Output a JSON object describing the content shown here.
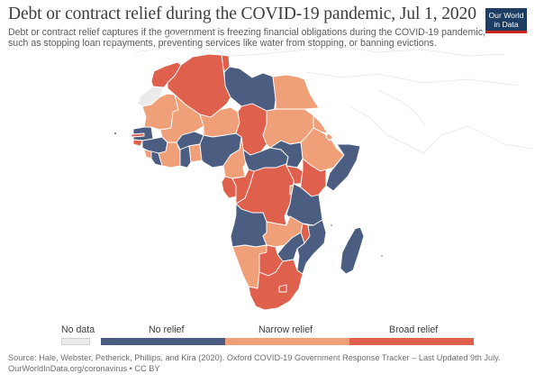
{
  "header": {
    "title": "Debt or contract relief during the COVID-19 pandemic, Jul 1, 2020",
    "subtitle_line1": "Debt or contract relief captures if the government is freezing financial obligations during the COVID-19 pandemic,",
    "subtitle_line2": "such as stopping loan repayments, preventing services like water from stopping, or banning evictions."
  },
  "logo": {
    "line1": "Our World",
    "line2": "in Data"
  },
  "legend": {
    "items": [
      {
        "label": "No data",
        "color": "#ebebeb"
      },
      {
        "label": "No relief",
        "color": "#4b5e82"
      },
      {
        "label": "Narrow relief",
        "color": "#f0a078"
      },
      {
        "label": "Broad relief",
        "color": "#e0604e"
      }
    ]
  },
  "map_colors": {
    "ocean_lines": "#e8e8e8",
    "border": "#ffffff",
    "no_data": "#ebebeb",
    "no_relief": "#4b5e82",
    "narrow_relief": "#f0a078",
    "broad_relief": "#e0604e"
  },
  "footer": {
    "source_line1": "Source: Hale, Webster, Petherick, Phillips, and Kira (2020). Oxford COVID-19 Government Response Tracker – Last Updated 9th July.",
    "source_line2": "OurWorldInData.org/coronavirus • CC BY"
  }
}
